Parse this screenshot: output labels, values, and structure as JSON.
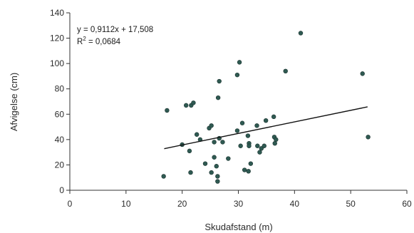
{
  "chart_data": {
    "type": "scatter",
    "xlabel": "Skudafstand (m)",
    "ylabel": "Afvigelse (cm)",
    "xlim": [
      0,
      60
    ],
    "ylim": [
      0,
      140
    ],
    "xticks": [
      "0",
      "10",
      "20",
      "30",
      "40",
      "50",
      "60"
    ],
    "yticks": [
      "0",
      "20",
      "40",
      "60",
      "80",
      "100",
      "120",
      "140"
    ],
    "grid": false,
    "annotation": {
      "equation": "y = 0,9112x + 17,508",
      "r2_prefix": "R",
      "r2_exp": "2",
      "r2_value": " = 0,0684"
    },
    "trendline": {
      "slope": 0.9112,
      "intercept": 17.508,
      "x_range": [
        16.8,
        53
      ]
    },
    "point_color": "#2f5a52",
    "points": [
      [
        16.7,
        11
      ],
      [
        17.3,
        63
      ],
      [
        20,
        36
      ],
      [
        20.7,
        67
      ],
      [
        21.3,
        31
      ],
      [
        21.5,
        14
      ],
      [
        21.6,
        67
      ],
      [
        22,
        69
      ],
      [
        22.6,
        44
      ],
      [
        23.2,
        40
      ],
      [
        24.1,
        21
      ],
      [
        24.8,
        49
      ],
      [
        25.2,
        14
      ],
      [
        25.2,
        51
      ],
      [
        25.7,
        26
      ],
      [
        25.7,
        38
      ],
      [
        26.1,
        19
      ],
      [
        26.3,
        11
      ],
      [
        26.3,
        7
      ],
      [
        26.4,
        73
      ],
      [
        26.6,
        86
      ],
      [
        26.6,
        41
      ],
      [
        27.2,
        38
      ],
      [
        28.2,
        25
      ],
      [
        29.8,
        47
      ],
      [
        29.8,
        91
      ],
      [
        30.2,
        101
      ],
      [
        30.4,
        35
      ],
      [
        30.7,
        53
      ],
      [
        31.1,
        16
      ],
      [
        31.7,
        43
      ],
      [
        31.8,
        15
      ],
      [
        31.9,
        37
      ],
      [
        31.9,
        35
      ],
      [
        32.2,
        21
      ],
      [
        33.3,
        51
      ],
      [
        33.4,
        35
      ],
      [
        33.8,
        30
      ],
      [
        34.1,
        33
      ],
      [
        34.6,
        35
      ],
      [
        34.9,
        55
      ],
      [
        36.3,
        58
      ],
      [
        36.4,
        42
      ],
      [
        36.5,
        37
      ],
      [
        36.7,
        40
      ],
      [
        38.4,
        94
      ],
      [
        41.1,
        124
      ],
      [
        52.1,
        92
      ],
      [
        53.1,
        42
      ]
    ]
  }
}
